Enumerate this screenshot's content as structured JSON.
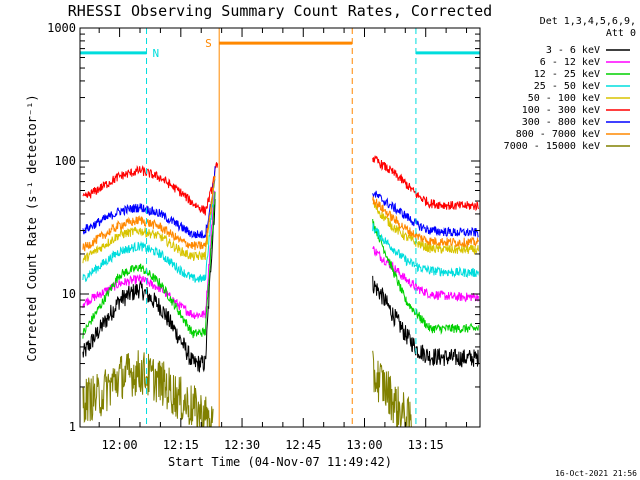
{
  "chart_data": {
    "type": "line",
    "title": "RHESSI Observing Summary Count Rates, Corrected",
    "xlabel": "Start Time (04-Nov-07 11:49:42)",
    "ylabel": "Corrected Count Rate (s⁻¹ detector⁻¹)",
    "y_scale": "log",
    "ylim": [
      1,
      1000
    ],
    "y_ticks": [
      {
        "label": "1",
        "value": 1
      },
      {
        "label": "10",
        "value": 10
      },
      {
        "label": "100",
        "value": 100
      },
      {
        "label": "1000",
        "value": 1000
      }
    ],
    "xlim_minutes": [
      -9.7,
      88.3
    ],
    "x_ticks": [
      {
        "label": "12:00",
        "minutes": 0
      },
      {
        "label": "12:15",
        "minutes": 15
      },
      {
        "label": "12:30",
        "minutes": 30
      },
      {
        "label": "12:45",
        "minutes": 45
      },
      {
        "label": "13:00",
        "minutes": 60
      },
      {
        "label": "13:15",
        "minutes": 75
      }
    ],
    "legend_header": [
      "Det 1,3,4,5,6,9,",
      "Att 0"
    ],
    "legend_position": "right",
    "grid": false,
    "gap_minutes": [
      27.3,
      62.0
    ],
    "series": [
      {
        "name": "3 - 6 keV",
        "color": "#000000",
        "points": [
          [
            -9,
            3.5
          ],
          [
            0,
            9
          ],
          [
            5,
            11
          ],
          [
            10,
            8
          ],
          [
            15,
            4.5
          ],
          [
            18,
            3
          ],
          [
            21,
            3
          ],
          [
            22.5,
            20
          ],
          [
            23.5,
            55
          ]
        ],
        "points2": [
          [
            62,
            12
          ],
          [
            64,
            10
          ],
          [
            67,
            7
          ],
          [
            70,
            5
          ],
          [
            73,
            3.8
          ],
          [
            76,
            3.4
          ],
          [
            82,
            3.3
          ],
          [
            88,
            3.3
          ]
        ]
      },
      {
        "name": "6 - 12 keV",
        "color": "#ff00ff",
        "points": [
          [
            -9,
            8.5
          ],
          [
            0,
            12
          ],
          [
            5,
            13
          ],
          [
            10,
            11
          ],
          [
            15,
            8
          ],
          [
            18,
            7
          ],
          [
            21,
            7
          ],
          [
            22.5,
            30
          ],
          [
            23.5,
            70
          ]
        ],
        "points2": [
          [
            62,
            22
          ],
          [
            64,
            19
          ],
          [
            67,
            16
          ],
          [
            70,
            13
          ],
          [
            73,
            11
          ],
          [
            76,
            10
          ],
          [
            82,
            9.5
          ],
          [
            88,
            9.5
          ]
        ]
      },
      {
        "name": "12 - 25 keV",
        "color": "#00d000",
        "points": [
          [
            -9,
            5
          ],
          [
            0,
            14
          ],
          [
            5,
            16
          ],
          [
            10,
            12
          ],
          [
            15,
            7
          ],
          [
            18,
            5
          ],
          [
            21,
            5.2
          ],
          [
            22.5,
            25
          ],
          [
            23.5,
            60
          ]
        ],
        "points2": [
          [
            62,
            35
          ],
          [
            64,
            25
          ],
          [
            67,
            15
          ],
          [
            70,
            9
          ],
          [
            73,
            7
          ],
          [
            76,
            5.5
          ],
          [
            82,
            5.5
          ],
          [
            88,
            5.5
          ]
        ]
      },
      {
        "name": "25 - 50 keV",
        "color": "#00dddd",
        "points": [
          [
            -9,
            13
          ],
          [
            0,
            21
          ],
          [
            5,
            23
          ],
          [
            10,
            20
          ],
          [
            15,
            15
          ],
          [
            18,
            13
          ],
          [
            21,
            13
          ],
          [
            22.5,
            40
          ],
          [
            23.5,
            80
          ]
        ],
        "points2": [
          [
            62,
            32
          ],
          [
            64,
            27
          ],
          [
            67,
            22
          ],
          [
            70,
            18
          ],
          [
            73,
            16
          ],
          [
            76,
            15
          ],
          [
            82,
            14.5
          ],
          [
            88,
            14.5
          ]
        ]
      },
      {
        "name": "50 - 100 keV",
        "color": "#d8c400",
        "points": [
          [
            -9,
            18
          ],
          [
            0,
            28
          ],
          [
            5,
            30
          ],
          [
            10,
            27
          ],
          [
            15,
            21
          ],
          [
            18,
            19
          ],
          [
            21,
            19.5
          ],
          [
            22.5,
            45
          ],
          [
            23.5,
            85
          ]
        ],
        "points2": [
          [
            62,
            48
          ],
          [
            64,
            40
          ],
          [
            67,
            32
          ],
          [
            70,
            27
          ],
          [
            73,
            24
          ],
          [
            76,
            22
          ],
          [
            82,
            21.5
          ],
          [
            88,
            21.5
          ]
        ]
      },
      {
        "name": "100 - 300 keV",
        "color": "#ff0000",
        "points": [
          [
            -9,
            52
          ],
          [
            0,
            77
          ],
          [
            5,
            85
          ],
          [
            10,
            75
          ],
          [
            15,
            58
          ],
          [
            18,
            48
          ],
          [
            21,
            42
          ],
          [
            22.5,
            60
          ],
          [
            24,
            100
          ]
        ],
        "points2": [
          [
            62,
            105
          ],
          [
            64,
            95
          ],
          [
            67,
            82
          ],
          [
            70,
            68
          ],
          [
            73,
            55
          ],
          [
            76,
            48
          ],
          [
            82,
            46
          ],
          [
            88,
            46
          ]
        ]
      },
      {
        "name": "300 - 800 keV",
        "color": "#0000ff",
        "points": [
          [
            -9,
            30
          ],
          [
            0,
            42
          ],
          [
            5,
            45
          ],
          [
            10,
            40
          ],
          [
            15,
            32
          ],
          [
            18,
            28
          ],
          [
            21,
            28
          ],
          [
            22.5,
            50
          ],
          [
            23.5,
            90
          ]
        ],
        "points2": [
          [
            62,
            58
          ],
          [
            64,
            52
          ],
          [
            67,
            45
          ],
          [
            70,
            39
          ],
          [
            73,
            33
          ],
          [
            76,
            30
          ],
          [
            82,
            29
          ],
          [
            88,
            29
          ]
        ]
      },
      {
        "name": "800 - 7000 keV",
        "color": "#ff8800",
        "points": [
          [
            -9,
            22
          ],
          [
            0,
            33
          ],
          [
            5,
            36
          ],
          [
            10,
            32
          ],
          [
            15,
            25
          ],
          [
            18,
            23
          ],
          [
            21,
            23
          ],
          [
            22.5,
            48
          ],
          [
            23.5,
            88
          ]
        ],
        "points2": [
          [
            62,
            52
          ],
          [
            64,
            45
          ],
          [
            67,
            37
          ],
          [
            70,
            31
          ],
          [
            73,
            27
          ],
          [
            76,
            25
          ],
          [
            82,
            24.5
          ],
          [
            88,
            24.5
          ]
        ]
      },
      {
        "name": "7000 - 15000 keV",
        "color": "#808000",
        "points": [
          [
            -9,
            1.6
          ],
          [
            -5,
            1.7
          ],
          [
            0,
            2.4
          ],
          [
            5,
            2.6
          ],
          [
            10,
            2.2
          ],
          [
            15,
            1.6
          ],
          [
            18,
            1.4
          ],
          [
            21,
            1.2
          ],
          [
            23,
            1.0
          ]
        ],
        "points2": [
          [
            62,
            2.5
          ],
          [
            64,
            2.2
          ],
          [
            66,
            1.8
          ],
          [
            68,
            1.4
          ],
          [
            70,
            1.2
          ],
          [
            72,
            1.0
          ]
        ]
      }
    ],
    "annotations": {
      "night": [
        {
          "label": "N",
          "start_min": -9.7,
          "end_min": 6.6,
          "color": "#00dddd",
          "level": 650
        },
        {
          "label": "",
          "start_min": 72.6,
          "end_min": 88.3,
          "color": "#00dddd",
          "level": 650
        }
      ],
      "saa": {
        "label": "S",
        "start_min": 24.4,
        "end_min": 57.0,
        "color": "#ff8800",
        "level": 770
      }
    }
  },
  "timestamp": "16-Oct-2021 21:56"
}
